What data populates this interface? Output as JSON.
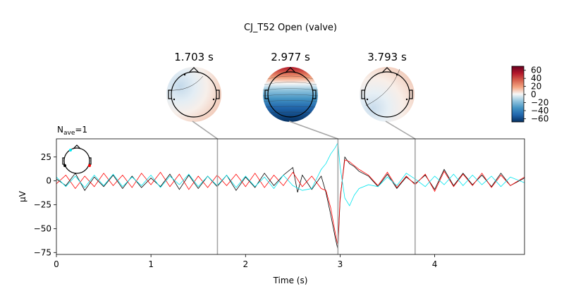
{
  "figure": {
    "title": "CJ_T52 Open (valve)",
    "nave_label": "N",
    "nave_sub": "ave",
    "nave_value": "=1"
  },
  "chart_data": {
    "type": "line",
    "title": "CJ_T52 Open (valve)",
    "xlabel": "Time (s)",
    "ylabel": "µV",
    "xlim": [
      0,
      4.95
    ],
    "ylim": [
      -77,
      44
    ],
    "xticks": [
      0,
      1,
      2,
      3,
      4
    ],
    "yticks": [
      25,
      0,
      -25,
      -50,
      -75
    ],
    "grid": false,
    "highlight_times": [
      1.703,
      2.977,
      3.793
    ],
    "series": [
      {
        "color": "#000000",
        "points": [
          [
            0.0,
            2
          ],
          [
            0.1,
            -5
          ],
          [
            0.2,
            8
          ],
          [
            0.3,
            -10
          ],
          [
            0.4,
            4
          ],
          [
            0.5,
            -6
          ],
          [
            0.6,
            6
          ],
          [
            0.7,
            -8
          ],
          [
            0.8,
            5
          ],
          [
            0.9,
            -7
          ],
          [
            1.0,
            3
          ],
          [
            1.1,
            -6
          ],
          [
            1.2,
            7
          ],
          [
            1.3,
            -9
          ],
          [
            1.4,
            6
          ],
          [
            1.5,
            -8
          ],
          [
            1.6,
            5
          ],
          [
            1.7,
            -6
          ],
          [
            1.8,
            6
          ],
          [
            1.9,
            -10
          ],
          [
            2.0,
            4
          ],
          [
            2.1,
            -7
          ],
          [
            2.2,
            8
          ],
          [
            2.3,
            -5
          ],
          [
            2.4,
            6
          ],
          [
            2.5,
            14
          ],
          [
            2.55,
            -12
          ],
          [
            2.6,
            6
          ],
          [
            2.7,
            -9
          ],
          [
            2.8,
            5
          ],
          [
            2.85,
            -12
          ],
          [
            2.9,
            -35
          ],
          [
            2.95,
            -60
          ],
          [
            2.977,
            -72
          ],
          [
            3.0,
            -20
          ],
          [
            3.05,
            25
          ],
          [
            3.1,
            18
          ],
          [
            3.15,
            15
          ],
          [
            3.2,
            10
          ],
          [
            3.3,
            5
          ],
          [
            3.4,
            -6
          ],
          [
            3.5,
            7
          ],
          [
            3.6,
            -8
          ],
          [
            3.7,
            4
          ],
          [
            3.793,
            -3
          ],
          [
            3.9,
            6
          ],
          [
            4.0,
            -9
          ],
          [
            4.1,
            12
          ],
          [
            4.2,
            -5
          ],
          [
            4.3,
            8
          ],
          [
            4.4,
            -4
          ],
          [
            4.5,
            6
          ],
          [
            4.6,
            -6
          ],
          [
            4.7,
            8
          ],
          [
            4.8,
            -5
          ],
          [
            4.95,
            3
          ]
        ]
      },
      {
        "color": "#ff0000",
        "points": [
          [
            0.0,
            -3
          ],
          [
            0.1,
            6
          ],
          [
            0.2,
            -8
          ],
          [
            0.3,
            5
          ],
          [
            0.4,
            -6
          ],
          [
            0.5,
            8
          ],
          [
            0.6,
            -5
          ],
          [
            0.7,
            6
          ],
          [
            0.8,
            -7
          ],
          [
            0.9,
            8
          ],
          [
            1.0,
            -4
          ],
          [
            1.1,
            9
          ],
          [
            1.2,
            -6
          ],
          [
            1.3,
            7
          ],
          [
            1.4,
            -9
          ],
          [
            1.5,
            5
          ],
          [
            1.6,
            -7
          ],
          [
            1.7,
            6
          ],
          [
            1.8,
            -5
          ],
          [
            1.9,
            7
          ],
          [
            2.0,
            -6
          ],
          [
            2.1,
            8
          ],
          [
            2.2,
            -7
          ],
          [
            2.3,
            6
          ],
          [
            2.4,
            -5
          ],
          [
            2.5,
            9
          ],
          [
            2.6,
            -6
          ],
          [
            2.7,
            5
          ],
          [
            2.8,
            -8
          ],
          [
            2.85,
            -10
          ],
          [
            2.9,
            -28
          ],
          [
            2.95,
            -55
          ],
          [
            2.977,
            -68
          ],
          [
            3.0,
            -18
          ],
          [
            3.05,
            22
          ],
          [
            3.1,
            20
          ],
          [
            3.15,
            16
          ],
          [
            3.2,
            12
          ],
          [
            3.3,
            6
          ],
          [
            3.4,
            -5
          ],
          [
            3.5,
            9
          ],
          [
            3.6,
            -7
          ],
          [
            3.7,
            5
          ],
          [
            3.793,
            -4
          ],
          [
            3.9,
            7
          ],
          [
            4.0,
            -11
          ],
          [
            4.1,
            10
          ],
          [
            4.2,
            -6
          ],
          [
            4.3,
            7
          ],
          [
            4.4,
            -5
          ],
          [
            4.5,
            8
          ],
          [
            4.6,
            -7
          ],
          [
            4.7,
            6
          ],
          [
            4.8,
            -5
          ],
          [
            4.95,
            4
          ]
        ]
      },
      {
        "color": "#00e5ee",
        "points": [
          [
            0.0,
            4
          ],
          [
            0.1,
            -6
          ],
          [
            0.2,
            5
          ],
          [
            0.3,
            -7
          ],
          [
            0.4,
            6
          ],
          [
            0.5,
            -5
          ],
          [
            0.6,
            7
          ],
          [
            0.7,
            -6
          ],
          [
            0.8,
            4
          ],
          [
            0.9,
            -5
          ],
          [
            1.0,
            6
          ],
          [
            1.1,
            -7
          ],
          [
            1.2,
            5
          ],
          [
            1.3,
            -4
          ],
          [
            1.4,
            7
          ],
          [
            1.5,
            -6
          ],
          [
            1.6,
            5
          ],
          [
            1.7,
            -5
          ],
          [
            1.8,
            6
          ],
          [
            1.9,
            -7
          ],
          [
            2.0,
            5
          ],
          [
            2.1,
            -6
          ],
          [
            2.2,
            4
          ],
          [
            2.3,
            -8
          ],
          [
            2.4,
            6
          ],
          [
            2.5,
            -5
          ],
          [
            2.6,
            -10
          ],
          [
            2.7,
            -8
          ],
          [
            2.8,
            12
          ],
          [
            2.85,
            18
          ],
          [
            2.9,
            28
          ],
          [
            2.95,
            35
          ],
          [
            2.977,
            40
          ],
          [
            3.0,
            15
          ],
          [
            3.05,
            -18
          ],
          [
            3.1,
            -26
          ],
          [
            3.15,
            -15
          ],
          [
            3.2,
            -8
          ],
          [
            3.3,
            -4
          ],
          [
            3.4,
            -6
          ],
          [
            3.5,
            4
          ],
          [
            3.6,
            -5
          ],
          [
            3.7,
            8
          ],
          [
            3.793,
            2
          ],
          [
            3.9,
            -6
          ],
          [
            4.0,
            5
          ],
          [
            4.1,
            -4
          ],
          [
            4.2,
            7
          ],
          [
            4.3,
            -5
          ],
          [
            4.4,
            6
          ],
          [
            4.5,
            -4
          ],
          [
            4.6,
            5
          ],
          [
            4.7,
            -6
          ],
          [
            4.8,
            4
          ],
          [
            4.95,
            -2
          ]
        ]
      }
    ]
  },
  "topomaps": [
    {
      "time_label": "1.703 s",
      "style": "weak-positive"
    },
    {
      "time_label": "2.977 s",
      "style": "strong-dipole"
    },
    {
      "time_label": "3.793 s",
      "style": "weak-positive"
    }
  ],
  "colorbar": {
    "ticks": [
      60,
      40,
      20,
      0,
      -20,
      -40,
      -60
    ],
    "tick_labels": [
      "60",
      "40",
      "20",
      "0",
      "−20",
      "−40",
      "−60"
    ],
    "vmin": -68,
    "vmax": 70,
    "colors": [
      "#053061",
      "#2166ac",
      "#4393c3",
      "#92c5de",
      "#f7f7f7",
      "#f4a582",
      "#d6604d",
      "#b2182b",
      "#67001f"
    ]
  },
  "sensor_inset": {
    "sensor_colors": [
      "#00e5ee",
      "#000000",
      "#ff0000"
    ]
  },
  "colors": {
    "axes": "#000000",
    "connector": "#a6a6a6"
  }
}
